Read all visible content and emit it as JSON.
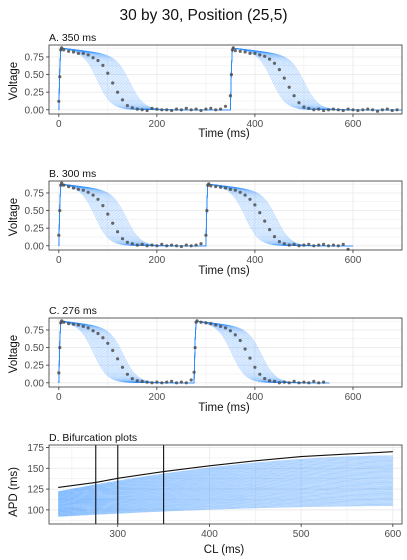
{
  "title": "30 by 30, Position (25,5)",
  "colors": {
    "sim": "#2b8cff",
    "obs": "#4d4d4d",
    "grid": "#ebebeb",
    "panel_border": "#333333",
    "bif_black": "#111111"
  },
  "chart_data": [
    {
      "type": "line",
      "panel_title": "A. 350 ms",
      "cycle_length_ms": 350,
      "xlabel": "Time (ms)",
      "ylabel": "Voltage",
      "xlim": [
        -20,
        700
      ],
      "ylim": [
        -0.06,
        0.92
      ],
      "x_ticks": [
        0,
        200,
        400,
        600
      ],
      "y_ticks": [
        0.0,
        0.25,
        0.5,
        0.75
      ],
      "y_tick_labels": [
        "0.00",
        "0.25",
        "0.50",
        "0.75"
      ],
      "stim_times": [
        0,
        350
      ],
      "sim_apd_range": [
        80,
        145
      ],
      "observed_points": [
        [
          0,
          0.12
        ],
        [
          2,
          0.47
        ],
        [
          4,
          0.85
        ],
        [
          6,
          0.88
        ],
        [
          10,
          0.85
        ],
        [
          20,
          0.83
        ],
        [
          30,
          0.82
        ],
        [
          40,
          0.8
        ],
        [
          50,
          0.8
        ],
        [
          60,
          0.78
        ],
        [
          70,
          0.74
        ],
        [
          80,
          0.7
        ],
        [
          90,
          0.63
        ],
        [
          100,
          0.52
        ],
        [
          110,
          0.38
        ],
        [
          120,
          0.25
        ],
        [
          130,
          0.14
        ],
        [
          140,
          0.06
        ],
        [
          150,
          0.03
        ],
        [
          160,
          0.01
        ],
        [
          170,
          0.0
        ],
        [
          180,
          -0.01
        ],
        [
          190,
          0.02
        ],
        [
          200,
          0.01
        ],
        [
          210,
          0.0
        ],
        [
          220,
          0.0
        ],
        [
          230,
          -0.01
        ],
        [
          240,
          0.01
        ],
        [
          250,
          0.0
        ],
        [
          260,
          0.02
        ],
        [
          270,
          0.0
        ],
        [
          280,
          0.01
        ],
        [
          290,
          -0.01
        ],
        [
          300,
          0.01
        ],
        [
          310,
          0.02
        ],
        [
          320,
          0.0
        ],
        [
          330,
          0.01
        ],
        [
          340,
          0.05
        ],
        [
          350,
          0.2
        ],
        [
          352,
          0.5
        ],
        [
          354,
          0.85
        ],
        [
          356,
          0.88
        ],
        [
          360,
          0.84
        ],
        [
          370,
          0.83
        ],
        [
          380,
          0.82
        ],
        [
          390,
          0.8
        ],
        [
          400,
          0.8
        ],
        [
          410,
          0.78
        ],
        [
          420,
          0.76
        ],
        [
          430,
          0.72
        ],
        [
          440,
          0.66
        ],
        [
          450,
          0.57
        ],
        [
          460,
          0.45
        ],
        [
          470,
          0.32
        ],
        [
          480,
          0.2
        ],
        [
          490,
          0.1
        ],
        [
          500,
          0.04
        ],
        [
          510,
          0.02
        ],
        [
          520,
          0.0
        ],
        [
          530,
          0.01
        ],
        [
          540,
          -0.01
        ],
        [
          550,
          0.0
        ],
        [
          560,
          0.01
        ],
        [
          570,
          0.0
        ],
        [
          580,
          -0.01
        ],
        [
          590,
          0.01
        ],
        [
          600,
          0.0
        ],
        [
          610,
          -0.01
        ],
        [
          620,
          0.0
        ],
        [
          630,
          0.01
        ],
        [
          640,
          0.0
        ],
        [
          650,
          -0.02
        ],
        [
          660,
          0.0
        ],
        [
          670,
          0.01
        ],
        [
          680,
          -0.01
        ],
        [
          690,
          0.0
        ]
      ]
    },
    {
      "type": "line",
      "panel_title": "B. 300 ms",
      "cycle_length_ms": 300,
      "xlabel": "Time (ms)",
      "ylabel": "Voltage",
      "xlim": [
        -20,
        700
      ],
      "ylim": [
        -0.06,
        0.92
      ],
      "x_ticks": [
        0,
        200,
        400,
        600
      ],
      "y_ticks": [
        0.0,
        0.25,
        0.5,
        0.75
      ],
      "y_tick_labels": [
        "0.00",
        "0.25",
        "0.50",
        "0.75"
      ],
      "stim_times": [
        0,
        300
      ],
      "sim_apd_range": [
        75,
        138
      ],
      "observed_points": [
        [
          0,
          0.15
        ],
        [
          2,
          0.5
        ],
        [
          4,
          0.86
        ],
        [
          6,
          0.89
        ],
        [
          10,
          0.86
        ],
        [
          20,
          0.84
        ],
        [
          30,
          0.82
        ],
        [
          40,
          0.8
        ],
        [
          50,
          0.79
        ],
        [
          60,
          0.76
        ],
        [
          70,
          0.72
        ],
        [
          80,
          0.66
        ],
        [
          90,
          0.57
        ],
        [
          100,
          0.45
        ],
        [
          110,
          0.32
        ],
        [
          120,
          0.2
        ],
        [
          130,
          0.1
        ],
        [
          140,
          0.05
        ],
        [
          150,
          0.03
        ],
        [
          160,
          0.01
        ],
        [
          170,
          0.02
        ],
        [
          180,
          0.0
        ],
        [
          190,
          0.01
        ],
        [
          200,
          0.0
        ],
        [
          210,
          0.02
        ],
        [
          220,
          0.0
        ],
        [
          230,
          0.01
        ],
        [
          240,
          0.0
        ],
        [
          250,
          -0.01
        ],
        [
          260,
          0.01
        ],
        [
          270,
          0.0
        ],
        [
          280,
          0.01
        ],
        [
          290,
          0.03
        ],
        [
          300,
          0.15
        ],
        [
          302,
          0.5
        ],
        [
          304,
          0.86
        ],
        [
          306,
          0.88
        ],
        [
          310,
          0.85
        ],
        [
          320,
          0.84
        ],
        [
          330,
          0.83
        ],
        [
          340,
          0.82
        ],
        [
          350,
          0.8
        ],
        [
          360,
          0.79
        ],
        [
          370,
          0.76
        ],
        [
          380,
          0.72
        ],
        [
          390,
          0.66
        ],
        [
          400,
          0.58
        ],
        [
          410,
          0.47
        ],
        [
          420,
          0.35
        ],
        [
          430,
          0.23
        ],
        [
          440,
          0.13
        ],
        [
          450,
          0.06
        ],
        [
          460,
          0.03
        ],
        [
          470,
          0.01
        ],
        [
          480,
          0.02
        ],
        [
          490,
          0.0
        ],
        [
          500,
          0.01
        ],
        [
          510,
          0.02
        ],
        [
          520,
          0.0
        ],
        [
          530,
          0.01
        ],
        [
          540,
          0.02
        ],
        [
          550,
          0.0
        ],
        [
          560,
          0.01
        ],
        [
          570,
          0.0
        ],
        [
          580,
          0.02
        ],
        [
          590,
          -0.05
        ]
      ]
    },
    {
      "type": "line",
      "panel_title": "C. 276 ms",
      "cycle_length_ms": 276,
      "xlabel": "Time (ms)",
      "ylabel": "Voltage",
      "xlim": [
        -20,
        700
      ],
      "ylim": [
        -0.06,
        0.92
      ],
      "x_ticks": [
        0,
        200,
        400,
        600
      ],
      "y_ticks": [
        0.0,
        0.25,
        0.5,
        0.75
      ],
      "y_tick_labels": [
        "0.00",
        "0.25",
        "0.50",
        "0.75"
      ],
      "stim_times": [
        0,
        276
      ],
      "sim_apd_range": [
        72,
        132
      ],
      "observed_points": [
        [
          0,
          0.14
        ],
        [
          2,
          0.5
        ],
        [
          4,
          0.85
        ],
        [
          6,
          0.88
        ],
        [
          10,
          0.86
        ],
        [
          20,
          0.84
        ],
        [
          30,
          0.83
        ],
        [
          40,
          0.82
        ],
        [
          50,
          0.8
        ],
        [
          60,
          0.78
        ],
        [
          70,
          0.74
        ],
        [
          80,
          0.7
        ],
        [
          90,
          0.64
        ],
        [
          100,
          0.56
        ],
        [
          110,
          0.46
        ],
        [
          120,
          0.34
        ],
        [
          130,
          0.22
        ],
        [
          140,
          0.12
        ],
        [
          150,
          0.06
        ],
        [
          160,
          0.03
        ],
        [
          170,
          0.02
        ],
        [
          180,
          0.01
        ],
        [
          190,
          0.0
        ],
        [
          200,
          0.01
        ],
        [
          210,
          0.0
        ],
        [
          220,
          0.01
        ],
        [
          230,
          0.02
        ],
        [
          240,
          0.0
        ],
        [
          250,
          0.01
        ],
        [
          260,
          0.0
        ],
        [
          270,
          0.04
        ],
        [
          276,
          0.15
        ],
        [
          278,
          0.5
        ],
        [
          280,
          0.86
        ],
        [
          282,
          0.88
        ],
        [
          290,
          0.86
        ],
        [
          300,
          0.85
        ],
        [
          310,
          0.84
        ],
        [
          320,
          0.82
        ],
        [
          330,
          0.8
        ],
        [
          340,
          0.78
        ],
        [
          350,
          0.74
        ],
        [
          360,
          0.68
        ],
        [
          370,
          0.6
        ],
        [
          380,
          0.48
        ],
        [
          390,
          0.35
        ],
        [
          400,
          0.22
        ],
        [
          410,
          0.12
        ],
        [
          420,
          0.06
        ],
        [
          430,
          0.03
        ],
        [
          440,
          0.02
        ],
        [
          450,
          0.0
        ],
        [
          460,
          0.01
        ],
        [
          470,
          0.0
        ],
        [
          480,
          0.02
        ],
        [
          490,
          0.0
        ],
        [
          500,
          0.01
        ],
        [
          510,
          0.0
        ],
        [
          520,
          0.02
        ],
        [
          530,
          0.0
        ],
        [
          540,
          0.01
        ]
      ]
    },
    {
      "type": "line",
      "panel_title": "D. Bifurcation plots",
      "xlabel": "CL (ms)",
      "ylabel": "APD (ms)",
      "xlim": [
        225,
        610
      ],
      "ylim": [
        83,
        178
      ],
      "x_ticks": [
        300,
        400,
        500,
        600
      ],
      "y_ticks": [
        100,
        125,
        150,
        175
      ],
      "vertical_lines_cl": [
        276,
        300,
        350
      ],
      "sim_curve_cl_range": [
        235,
        600
      ],
      "sim_curve_count": 60,
      "sim_curve_at_235": [
        92,
        122
      ],
      "sim_curve_at_600": [
        105,
        165
      ],
      "black_curve": {
        "cl": [
          235,
          276,
          300,
          350,
          400,
          450,
          500,
          550,
          600
        ],
        "apd": [
          127,
          133,
          138,
          146,
          153,
          159,
          164,
          167,
          170
        ]
      }
    }
  ]
}
